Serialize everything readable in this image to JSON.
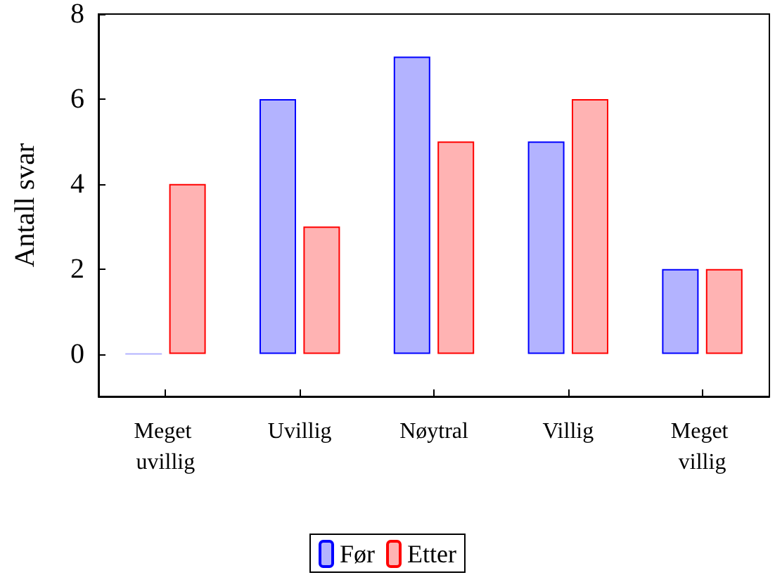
{
  "chart_data": {
    "type": "bar",
    "ylabel": "Antall svar",
    "categories": [
      "Meget uvillig",
      "Uvillig",
      "Nøytral",
      "Villig",
      "Meget villig"
    ],
    "series": [
      {
        "name": "Før",
        "color": "#b3b3ff",
        "values": [
          0,
          6,
          7,
          5,
          2
        ]
      },
      {
        "name": "Etter",
        "color": "#ffb3b3",
        "values": [
          4,
          3,
          5,
          6,
          2
        ]
      }
    ],
    "ylim": [
      -1,
      8
    ],
    "yticks": [
      0,
      2,
      4,
      6,
      8
    ],
    "grid": false,
    "legend": "bottom"
  }
}
